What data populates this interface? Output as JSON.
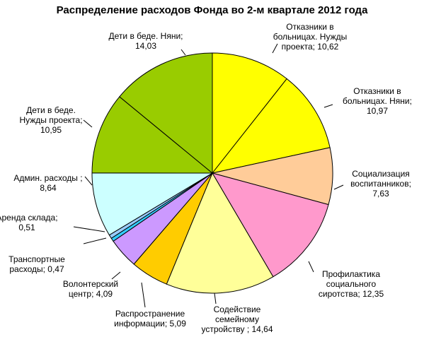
{
  "chart_data": {
    "type": "pie",
    "title": "Распределение расходов Фонда во 2-м квартале 2012 года",
    "slices": [
      {
        "label_lines": [
          "Отказники  в",
          "больницах.  Нужды",
          "проекта;  10,62"
        ],
        "value": 10.62,
        "color": "#ffff00"
      },
      {
        "label_lines": [
          "Отказники  в",
          "больницах.  Няни;",
          "10,97"
        ],
        "value": 10.97,
        "color": "#ffff00"
      },
      {
        "label_lines": [
          "Социализация",
          "воспитанников;",
          "7,63"
        ],
        "value": 7.63,
        "color": "#ffcc99"
      },
      {
        "label_lines": [
          "Профилактика",
          "социального",
          "сиротства;  12,35"
        ],
        "value": 12.35,
        "color": "#ff99cc"
      },
      {
        "label_lines": [
          "Содействие",
          "семейному",
          "устройству  ; 14,64"
        ],
        "value": 14.64,
        "color": "#ffff99"
      },
      {
        "label_lines": [
          "Распространение",
          "информации;  5,09"
        ],
        "value": 5.09,
        "color": "#ffcc00"
      },
      {
        "label_lines": [
          "Волонтерский",
          "центр;  4,09"
        ],
        "value": 4.09,
        "color": "#cc99ff"
      },
      {
        "label_lines": [
          "Транспортные",
          "расходы; 0,47"
        ],
        "value": 0.47,
        "color": "#33ccff"
      },
      {
        "label_lines": [
          "Аренда склада;",
          "0,51"
        ],
        "value": 0.51,
        "color": "#99ccff"
      },
      {
        "label_lines": [
          "Админ. расходы  ;",
          "8,64"
        ],
        "value": 8.64,
        "color": "#ccffff"
      },
      {
        "label_lines": [
          "Дети  в беде.",
          "Нужды проекта;",
          "10,95"
        ],
        "value": 10.95,
        "color": "#99cc00"
      },
      {
        "label_lines": [
          "Дети  в беде.  Няни;",
          "14,03"
        ],
        "value": 14.03,
        "color": "#99cc00"
      }
    ]
  }
}
